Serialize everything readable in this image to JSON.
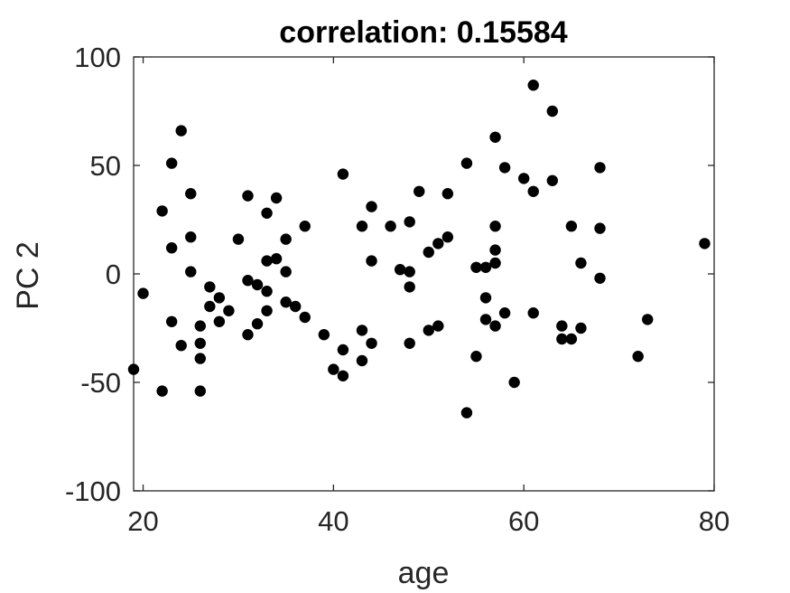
{
  "chart_data": {
    "type": "scatter",
    "title": "correlation: 0.15584",
    "xlabel": "age",
    "ylabel": "PC 2",
    "xlim": [
      19,
      80
    ],
    "ylim": [
      -100,
      100
    ],
    "xticks": [
      20,
      40,
      60,
      80
    ],
    "yticks": [
      -100,
      -50,
      0,
      50,
      100
    ],
    "xtick_labels": [
      "20",
      "40",
      "60",
      "80"
    ],
    "ytick_labels": [
      "-100",
      "-50",
      "0",
      "50",
      "100"
    ],
    "grid": false,
    "marker_color": "#000000",
    "axis_color": "#262626",
    "points": [
      {
        "x": 19,
        "y": -44
      },
      {
        "x": 20,
        "y": -9
      },
      {
        "x": 22,
        "y": 29
      },
      {
        "x": 22,
        "y": -54
      },
      {
        "x": 23,
        "y": 51
      },
      {
        "x": 23,
        "y": 12
      },
      {
        "x": 23,
        "y": -22
      },
      {
        "x": 24,
        "y": 66
      },
      {
        "x": 24,
        "y": -33
      },
      {
        "x": 25,
        "y": 37
      },
      {
        "x": 25,
        "y": 17
      },
      {
        "x": 25,
        "y": 1
      },
      {
        "x": 26,
        "y": -24
      },
      {
        "x": 26,
        "y": -32
      },
      {
        "x": 26,
        "y": -39
      },
      {
        "x": 26,
        "y": -54
      },
      {
        "x": 27,
        "y": -6
      },
      {
        "x": 27,
        "y": -15
      },
      {
        "x": 28,
        "y": -11
      },
      {
        "x": 28,
        "y": -22
      },
      {
        "x": 29,
        "y": -17
      },
      {
        "x": 30,
        "y": 16
      },
      {
        "x": 31,
        "y": 36
      },
      {
        "x": 31,
        "y": -3
      },
      {
        "x": 31,
        "y": -28
      },
      {
        "x": 32,
        "y": -5
      },
      {
        "x": 32,
        "y": -23
      },
      {
        "x": 33,
        "y": 28
      },
      {
        "x": 33,
        "y": 6
      },
      {
        "x": 33,
        "y": -8
      },
      {
        "x": 33,
        "y": -17
      },
      {
        "x": 34,
        "y": 35
      },
      {
        "x": 34,
        "y": 7
      },
      {
        "x": 35,
        "y": 16
      },
      {
        "x": 35,
        "y": 1
      },
      {
        "x": 35,
        "y": -13
      },
      {
        "x": 36,
        "y": -15
      },
      {
        "x": 37,
        "y": 22
      },
      {
        "x": 37,
        "y": -20
      },
      {
        "x": 39,
        "y": -28
      },
      {
        "x": 40,
        "y": -44
      },
      {
        "x": 41,
        "y": 46
      },
      {
        "x": 41,
        "y": -35
      },
      {
        "x": 41,
        "y": -47
      },
      {
        "x": 43,
        "y": 22
      },
      {
        "x": 43,
        "y": -26
      },
      {
        "x": 43,
        "y": -40
      },
      {
        "x": 44,
        "y": 31
      },
      {
        "x": 44,
        "y": 6
      },
      {
        "x": 44,
        "y": -32
      },
      {
        "x": 46,
        "y": 22
      },
      {
        "x": 47,
        "y": 2
      },
      {
        "x": 48,
        "y": 24
      },
      {
        "x": 48,
        "y": 1
      },
      {
        "x": 48,
        "y": -6
      },
      {
        "x": 48,
        "y": -32
      },
      {
        "x": 49,
        "y": 38
      },
      {
        "x": 50,
        "y": 10
      },
      {
        "x": 50,
        "y": -26
      },
      {
        "x": 51,
        "y": 14
      },
      {
        "x": 51,
        "y": -24
      },
      {
        "x": 52,
        "y": 37
      },
      {
        "x": 52,
        "y": 17
      },
      {
        "x": 54,
        "y": 51
      },
      {
        "x": 54,
        "y": -64
      },
      {
        "x": 55,
        "y": 3
      },
      {
        "x": 55,
        "y": -38
      },
      {
        "x": 56,
        "y": 3
      },
      {
        "x": 56,
        "y": -11
      },
      {
        "x": 56,
        "y": -21
      },
      {
        "x": 57,
        "y": 63
      },
      {
        "x": 57,
        "y": 22
      },
      {
        "x": 57,
        "y": 11
      },
      {
        "x": 57,
        "y": 5
      },
      {
        "x": 57,
        "y": -24
      },
      {
        "x": 58,
        "y": 49
      },
      {
        "x": 58,
        "y": -18
      },
      {
        "x": 59,
        "y": -50
      },
      {
        "x": 60,
        "y": 44
      },
      {
        "x": 61,
        "y": 87
      },
      {
        "x": 61,
        "y": 38
      },
      {
        "x": 61,
        "y": -18
      },
      {
        "x": 63,
        "y": 75
      },
      {
        "x": 63,
        "y": 43
      },
      {
        "x": 64,
        "y": -24
      },
      {
        "x": 64,
        "y": -30
      },
      {
        "x": 65,
        "y": 22
      },
      {
        "x": 65,
        "y": -30
      },
      {
        "x": 66,
        "y": 5
      },
      {
        "x": 66,
        "y": -25
      },
      {
        "x": 68,
        "y": 49
      },
      {
        "x": 68,
        "y": 21
      },
      {
        "x": 68,
        "y": -2
      },
      {
        "x": 72,
        "y": -38
      },
      {
        "x": 73,
        "y": -21
      },
      {
        "x": 79,
        "y": 14
      }
    ]
  }
}
